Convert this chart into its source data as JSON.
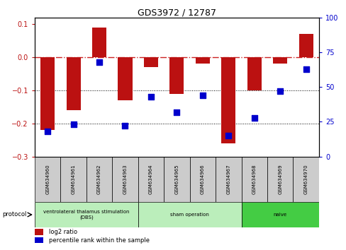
{
  "title": "GDS3972 / 12787",
  "samples": [
    "GSM634960",
    "GSM634961",
    "GSM634962",
    "GSM634963",
    "GSM634964",
    "GSM634965",
    "GSM634966",
    "GSM634967",
    "GSM634968",
    "GSM634969",
    "GSM634970"
  ],
  "log2_ratio": [
    -0.22,
    -0.16,
    0.09,
    -0.13,
    -0.03,
    -0.11,
    -0.02,
    -0.26,
    -0.1,
    -0.02,
    0.07
  ],
  "pct_rank": [
    18,
    23,
    68,
    22,
    43,
    32,
    44,
    15,
    28,
    47,
    63
  ],
  "bar_color": "#BB1111",
  "dot_color": "#0000CC",
  "ref_line_color": "#CC2222",
  "ylim_left": [
    -0.3,
    0.12
  ],
  "ylim_right": [
    0,
    100
  ],
  "yticks_left": [
    -0.3,
    -0.2,
    -0.1,
    0.0,
    0.1
  ],
  "yticks_right": [
    0,
    25,
    50,
    75,
    100
  ],
  "bar_width": 0.55,
  "dot_size": 28,
  "group_colors": [
    "#bbeebb",
    "#bbeebb",
    "#44cc44"
  ],
  "group_starts": [
    0,
    4,
    8
  ],
  "group_ends": [
    4,
    8,
    11
  ],
  "group_labels": [
    "ventrolateral thalamus stimulation\n(DBS)",
    "sham operation",
    "naive"
  ],
  "sample_box_color": "#cccccc",
  "title_fontsize": 9,
  "tick_fontsize": 7,
  "label_fontsize": 5
}
